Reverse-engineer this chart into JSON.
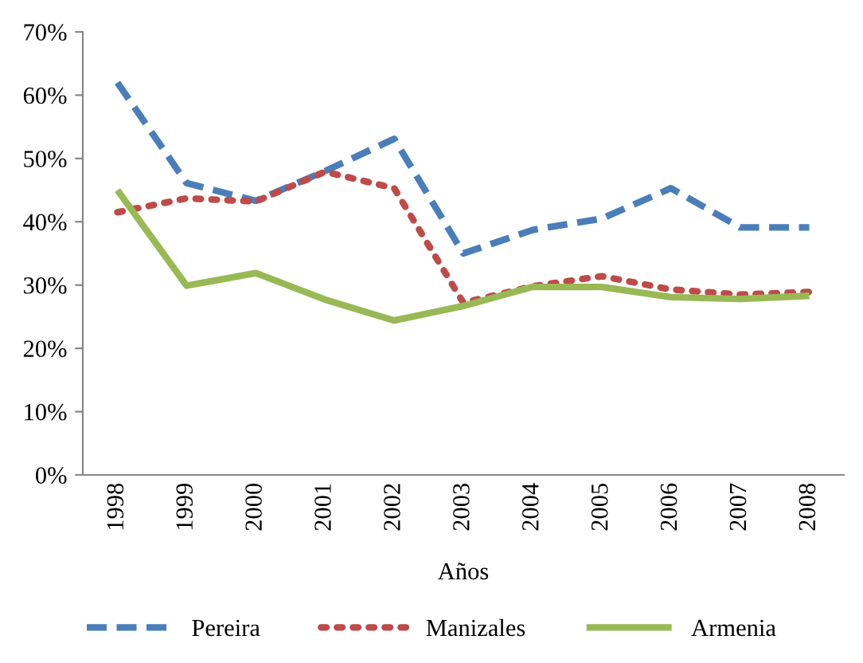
{
  "chart_data": {
    "type": "line",
    "xlabel": "Años",
    "categories": [
      "1998",
      "1999",
      "2000",
      "2001",
      "2002",
      "2003",
      "2004",
      "2005",
      "2006",
      "2007",
      "2008"
    ],
    "series": [
      {
        "name": "Pereira",
        "color": "#4a7ebb",
        "line_style": "dashed",
        "values": [
          62.0,
          46.1,
          43.3,
          48.0,
          53.1,
          35.0,
          38.7,
          40.5,
          45.3,
          39.1,
          39.1
        ]
      },
      {
        "name": "Manizales",
        "color": "#be4b48",
        "line_style": "dotted",
        "values": [
          41.5,
          43.7,
          43.2,
          47.9,
          45.3,
          27.2,
          29.8,
          31.4,
          29.3,
          28.5,
          28.9
        ]
      },
      {
        "name": "Armenia",
        "color": "#98b954",
        "line_style": "solid",
        "values": [
          45.0,
          29.9,
          31.9,
          27.7,
          24.4,
          26.7,
          29.7,
          29.7,
          28.1,
          27.8,
          28.3
        ]
      }
    ],
    "ylim": [
      0,
      70
    ],
    "yticks": [
      {
        "value": 0,
        "label": "0%"
      },
      {
        "value": 10,
        "label": "10%"
      },
      {
        "value": 20,
        "label": "20%"
      },
      {
        "value": 30,
        "label": "30%"
      },
      {
        "value": 40,
        "label": "40%"
      },
      {
        "value": 50,
        "label": "50%"
      },
      {
        "value": 60,
        "label": "60%"
      },
      {
        "value": 70,
        "label": "70%"
      }
    ],
    "grid": false,
    "legend": "bottom",
    "marker": "none"
  }
}
